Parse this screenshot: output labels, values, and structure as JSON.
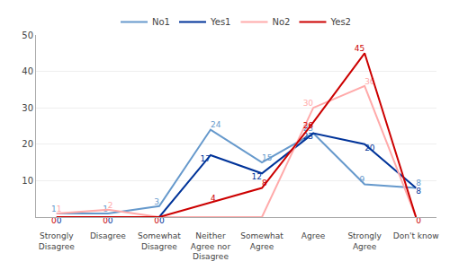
{
  "chart_data": {
    "type": "line",
    "categories": [
      "Strongly\nDisagree",
      "Disagree",
      "Somewhat\nDisagree",
      "Neither\nAgree nor\nDisagree",
      "Somewhat\nAgree",
      "Agree",
      "Strongly\nAgree",
      "Don't know"
    ],
    "series": [
      {
        "name": "No1",
        "color": "#6699cc",
        "values": [
          1,
          1,
          3,
          24,
          15,
          23,
          9,
          8
        ]
      },
      {
        "name": "Yes1",
        "color": "#003399",
        "values": [
          0,
          0,
          0,
          17,
          12,
          23,
          20,
          8
        ]
      },
      {
        "name": "No2",
        "color": "#ffaaaa",
        "values": [
          1,
          2,
          0,
          0,
          0,
          30,
          36,
          0
        ],
        "value_labels": [
          "1",
          "2",
          null,
          null,
          null,
          "30",
          "36",
          null
        ]
      },
      {
        "name": "Yes2",
        "color": "#cc0000",
        "values": [
          0,
          0,
          0,
          4,
          8,
          26,
          45,
          0
        ]
      }
    ],
    "ylim": [
      0,
      50
    ],
    "yticks": [
      10,
      20,
      30,
      40,
      50
    ],
    "grid": true,
    "data_labels": true,
    "legend": "top"
  }
}
